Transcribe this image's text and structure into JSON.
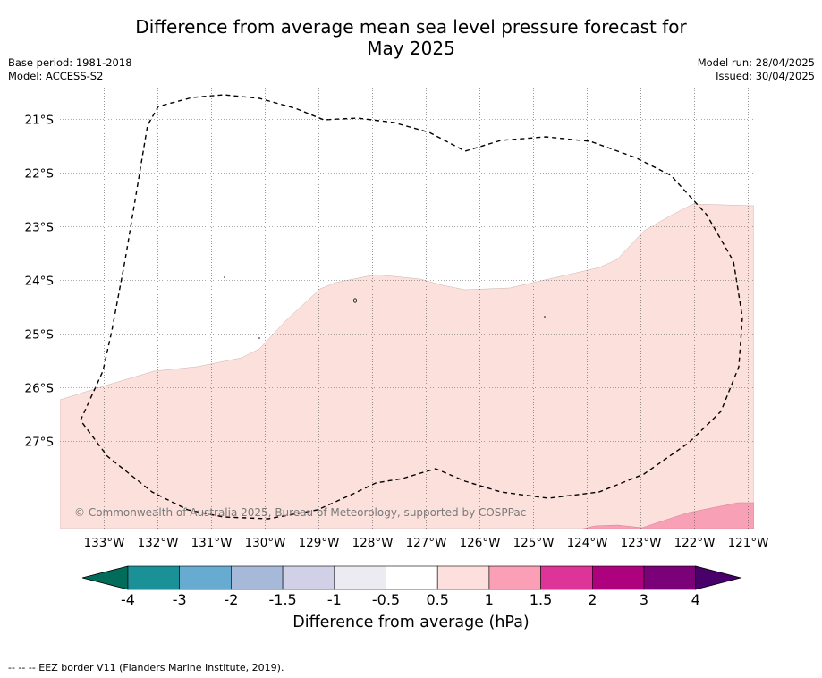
{
  "title_line1": "Difference from average mean sea level pressure forecast for",
  "title_line2": "May 2025",
  "base_period": "Base period: 1981-2018",
  "model": "Model: ACCESS-S2",
  "model_run": "Model run: 28/04/2025",
  "issued": "Issued: 30/04/2025",
  "copyright": "© Commonwealth of Australia 2025, Bureau of Meteorology, supported by COSPPac",
  "lat_labels": [
    "21°S",
    "22°S",
    "23°S",
    "24°S",
    "25°S",
    "26°S",
    "27°S"
  ],
  "lon_labels": [
    "133°W",
    "132°W",
    "131°W",
    "130°W",
    "129°W",
    "128°W",
    "127°W",
    "126°W",
    "125°W",
    "124°W",
    "123°W",
    "122°W",
    "121°W"
  ],
  "colorbar": {
    "title": "Difference from average (hPa)",
    "ticks": [
      "-4",
      "-3",
      "-2",
      "-1.5",
      "-1",
      "-0.5",
      "0.5",
      "1",
      "1.5",
      "2",
      "3",
      "4"
    ],
    "colors": [
      "#1a9196",
      "#67abd0",
      "#a7b9d9",
      "#d0d1e6",
      "#ecebf1",
      "#ffffff",
      "#fde0dd",
      "#fa9fb5",
      "#dd3497",
      "#ae017e",
      "#7a0177"
    ],
    "under_color": "#016c59",
    "over_color": "#49006a"
  },
  "footer": "--  --  -- EEZ border V11 (Flanders Marine Institute, 2019).",
  "colors": {
    "shade_0_5_1": "#fbe0dc",
    "shade_1_1_5": "#f8a0b6",
    "grid": "#555555"
  }
}
